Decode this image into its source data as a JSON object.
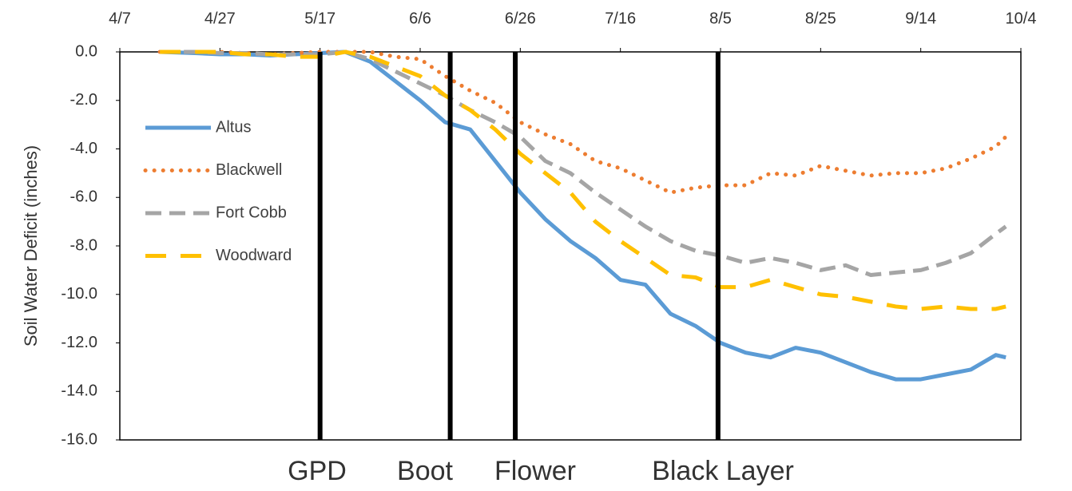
{
  "chart_data": {
    "type": "line",
    "y_label": "Soil Water Deficit (inches)",
    "xlim": [
      0,
      180
    ],
    "ylim": [
      -16,
      0
    ],
    "xticks": [
      {
        "value": 0,
        "label": "4/7"
      },
      {
        "value": 20,
        "label": "4/27"
      },
      {
        "value": 40,
        "label": "5/17"
      },
      {
        "value": 60,
        "label": "6/6"
      },
      {
        "value": 80,
        "label": "6/26"
      },
      {
        "value": 100,
        "label": "7/16"
      },
      {
        "value": 120,
        "label": "8/5"
      },
      {
        "value": 140,
        "label": "8/25"
      },
      {
        "value": 160,
        "label": "9/14"
      },
      {
        "value": 180,
        "label": "10/4"
      }
    ],
    "yticks": [
      {
        "value": 0,
        "label": "0.0"
      },
      {
        "value": -2,
        "label": "-2.0"
      },
      {
        "value": -4,
        "label": "-4.0"
      },
      {
        "value": -6,
        "label": "-6.0"
      },
      {
        "value": -8,
        "label": "-8.0"
      },
      {
        "value": -10,
        "label": "-10.0"
      },
      {
        "value": -12,
        "label": "-12.0"
      },
      {
        "value": -14,
        "label": "-14.0"
      },
      {
        "value": -16,
        "label": "-16.0"
      }
    ],
    "x": [
      8,
      15,
      20,
      25,
      30,
      35,
      40,
      45,
      50,
      55,
      60,
      65,
      70,
      75,
      80,
      85,
      90,
      95,
      100,
      105,
      110,
      115,
      120,
      125,
      130,
      135,
      140,
      145,
      150,
      155,
      160,
      165,
      170,
      175,
      177
    ],
    "series": [
      {
        "name": "Altus",
        "color": "#5b9bd5",
        "dash": "solid",
        "values": [
          0,
          -0.05,
          -0.1,
          -0.1,
          -0.15,
          -0.1,
          -0.05,
          0,
          -0.4,
          -1.2,
          -2.0,
          -2.9,
          -3.2,
          -4.5,
          -5.8,
          -6.9,
          -7.8,
          -8.5,
          -9.4,
          -9.6,
          -10.8,
          -11.3,
          -12.0,
          -12.4,
          -12.6,
          -12.2,
          -12.4,
          -12.8,
          -13.2,
          -13.5,
          -13.5,
          -13.3,
          -13.1,
          -12.5,
          -12.6
        ]
      },
      {
        "name": "Blackwell",
        "color": "#ed7d31",
        "dash": "dotted",
        "values": [
          0,
          0,
          0,
          -0.05,
          -0.1,
          -0.05,
          0,
          0,
          0,
          -0.2,
          -0.3,
          -1.0,
          -1.6,
          -2.1,
          -2.9,
          -3.4,
          -3.8,
          -4.5,
          -4.8,
          -5.3,
          -5.8,
          -5.6,
          -5.5,
          -5.5,
          -5.0,
          -5.1,
          -4.7,
          -4.9,
          -5.1,
          -5.0,
          -5.0,
          -4.8,
          -4.4,
          -3.9,
          -3.5
        ]
      },
      {
        "name": "Fort Cobb",
        "color": "#a5a5a5",
        "dash": "dashed",
        "values": [
          0,
          0,
          -0.05,
          -0.05,
          -0.1,
          -0.1,
          -0.1,
          0,
          -0.3,
          -0.8,
          -1.3,
          -1.8,
          -2.4,
          -2.9,
          -3.5,
          -4.5,
          -5.0,
          -5.8,
          -6.5,
          -7.2,
          -7.8,
          -8.2,
          -8.4,
          -8.7,
          -8.5,
          -8.7,
          -9.0,
          -8.8,
          -9.2,
          -9.1,
          -9.0,
          -8.7,
          -8.3,
          -7.5,
          -7.2
        ]
      },
      {
        "name": "Woodward",
        "color": "#ffc000",
        "dash": "long-dashed",
        "values": [
          0,
          0,
          0,
          -0.1,
          -0.1,
          -0.2,
          -0.2,
          0,
          -0.2,
          -0.6,
          -1.0,
          -1.8,
          -2.4,
          -3.2,
          -4.2,
          -5.0,
          -5.8,
          -7.0,
          -7.8,
          -8.5,
          -9.2,
          -9.3,
          -9.7,
          -9.7,
          -9.4,
          -9.7,
          -10.0,
          -10.1,
          -10.3,
          -10.5,
          -10.6,
          -10.5,
          -10.6,
          -10.6,
          -10.5
        ]
      }
    ],
    "stages": [
      {
        "label": "GPD",
        "x": 40
      },
      {
        "label": "Boot",
        "x": 66
      },
      {
        "label": "Flower",
        "x": 79
      },
      {
        "label": "Black Layer",
        "x": 119.5
      }
    ]
  }
}
